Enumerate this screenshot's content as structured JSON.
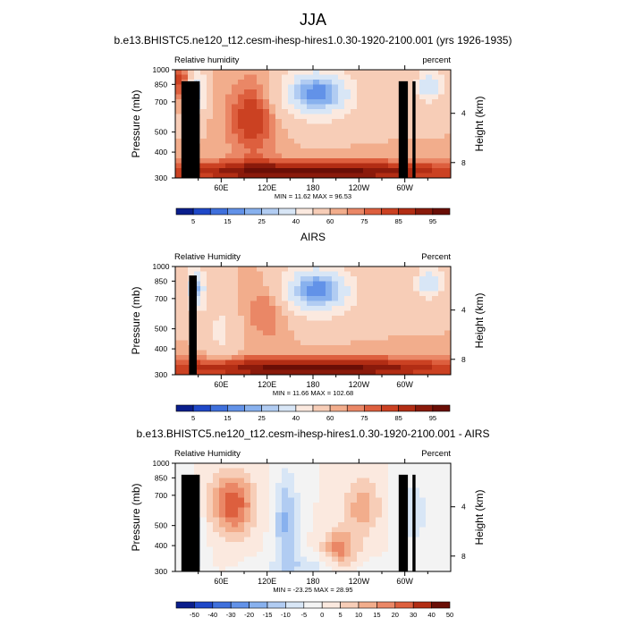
{
  "page": {
    "season": "JJA"
  },
  "chart_data": [
    {
      "type": "heatmap",
      "title": "b.e13.BHISTC5.ne120_t12.cesm-ihesp-hires1.0.30-1920-2100.001 (yrs 1926-1935)",
      "left_label": "Relative humidity",
      "right_label": "percent",
      "ylabel": "Pressure (mb)",
      "ylabel_right": "Height (km)",
      "x_ticks": [
        "60E",
        "120E",
        "180",
        "120W",
        "60W"
      ],
      "x_range_deg": [
        0,
        360
      ],
      "y_ticks": [
        300,
        400,
        500,
        700,
        850,
        1000
      ],
      "y_range_mb": [
        1000,
        300
      ],
      "y_right_ticks": [
        4,
        8
      ],
      "stats": "MIN =  11.62   MAX =  96.53",
      "min": 11.62,
      "max": 96.53,
      "colorbar_levels": [
        5,
        10,
        15,
        20,
        25,
        30,
        40,
        50,
        60,
        65,
        70,
        75,
        80,
        85,
        90,
        95
      ],
      "colorbar_labels": [
        "5",
        "15",
        "25",
        "40",
        "60",
        "75",
        "85",
        "95"
      ],
      "field": "model"
    },
    {
      "type": "heatmap",
      "title": "AIRS",
      "left_label": "Relative Humidity",
      "right_label": "Percent",
      "ylabel": "Pressure (mb)",
      "ylabel_right": "Height (km)",
      "x_ticks": [
        "60E",
        "120E",
        "180",
        "120W",
        "60W"
      ],
      "x_range_deg": [
        0,
        360
      ],
      "y_ticks": [
        300,
        400,
        500,
        700,
        850,
        1000
      ],
      "y_range_mb": [
        1000,
        300
      ],
      "y_right_ticks": [
        4,
        8
      ],
      "stats": "MIN =  11.66   MAX =  102.68",
      "min": 11.66,
      "max": 102.68,
      "colorbar_levels": [
        5,
        10,
        15,
        20,
        25,
        30,
        40,
        50,
        60,
        65,
        70,
        75,
        80,
        85,
        90,
        95
      ],
      "colorbar_labels": [
        "5",
        "15",
        "25",
        "40",
        "60",
        "75",
        "85",
        "95"
      ],
      "field": "obs"
    },
    {
      "type": "heatmap",
      "title": "b.e13.BHISTC5.ne120_t12.cesm-ihesp-hires1.0.30-1920-2100.001 - AIRS",
      "left_label": "Relative Humidity",
      "right_label": "Percent",
      "ylabel": "Pressure (mb)",
      "ylabel_right": "Height (km)",
      "x_ticks": [
        "60E",
        "120E",
        "180",
        "120W",
        "60W"
      ],
      "x_range_deg": [
        0,
        360
      ],
      "y_ticks": [
        300,
        400,
        500,
        700,
        850,
        1000
      ],
      "y_range_mb": [
        1000,
        300
      ],
      "y_right_ticks": [
        4,
        8
      ],
      "stats": "MIN = -23.25   MAX =  28.95",
      "min": -23.25,
      "max": 28.95,
      "colorbar_levels": [
        -50,
        -40,
        -30,
        -20,
        -15,
        -10,
        -5,
        0,
        5,
        10,
        15,
        20,
        30,
        40,
        50
      ],
      "colorbar_labels": [
        "-50",
        "-40",
        "-30",
        "-20",
        "-15",
        "-10",
        "-5",
        "0",
        "5",
        "10",
        "15",
        "20",
        "30",
        "40",
        "50"
      ],
      "field": "diff"
    }
  ],
  "palettes": {
    "abs": [
      "#0a1e8c",
      "#1f48c8",
      "#3f70dc",
      "#6292e8",
      "#88b1ee",
      "#b1ccf2",
      "#d8e6f6",
      "#fbe9df",
      "#f7cdb7",
      "#f2ad8c",
      "#ea8766",
      "#dd5f3e",
      "#cb4122",
      "#b22d14",
      "#8a1a0b",
      "#6a0e06"
    ],
    "diff": [
      "#0a1e8c",
      "#1f48c8",
      "#3f70dc",
      "#6292e8",
      "#88b1ee",
      "#b1ccf2",
      "#d8e6f6",
      "#f3f3f3",
      "#fbe9df",
      "#f7cdb7",
      "#f2ad8c",
      "#ea8766",
      "#dd5f3e",
      "#b22d14",
      "#6a0e06"
    ]
  }
}
